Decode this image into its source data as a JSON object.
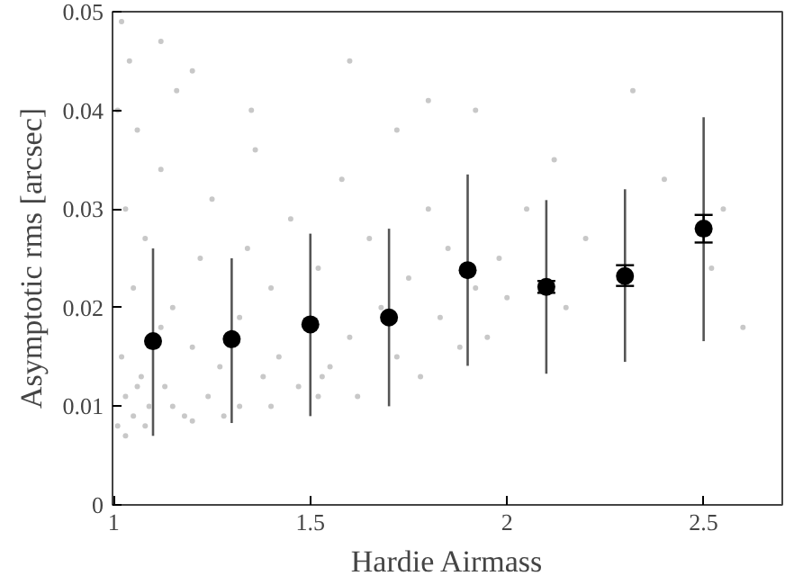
{
  "chart_data": {
    "type": "scatter",
    "xlabel": "Hardie Airmass",
    "ylabel": "Asymptotic rms [arcsec]",
    "xlim": [
      0.997,
      2.7
    ],
    "ylim": [
      0,
      0.05
    ],
    "xticks": [
      1,
      1.5,
      2,
      2.5
    ],
    "yticks": [
      0,
      0.01,
      0.02,
      0.03,
      0.04,
      0.05
    ],
    "grid": false,
    "series": [
      {
        "color": "#c8c8c8",
        "marker": "circle",
        "x": [
          1.01,
          1.02,
          1.02,
          1.03,
          1.03,
          1.04,
          1.05,
          1.05,
          1.06,
          1.07,
          1.08,
          1.09,
          1.12,
          1.12,
          1.13,
          1.15,
          1.16,
          1.18,
          1.2,
          1.22,
          1.24,
          1.25,
          1.27,
          1.32,
          1.32,
          1.34,
          1.36,
          1.38,
          1.4,
          1.42,
          1.45,
          1.47,
          1.53,
          1.52,
          1.55,
          1.58,
          1.6,
          1.62,
          1.65,
          1.68,
          1.72,
          1.72,
          1.75,
          1.78,
          1.8,
          1.83,
          1.85,
          1.88,
          1.92,
          1.92,
          1.95,
          1.98,
          2.0,
          2.05,
          2.12,
          2.15,
          2.2,
          2.32,
          2.4,
          2.52,
          2.55,
          2.6,
          1.01,
          1.03,
          1.06,
          1.08,
          1.15,
          1.2,
          1.28,
          1.4,
          1.52,
          1.12,
          1.2,
          1.35,
          1.6,
          1.8
        ],
        "values": [
          0.008,
          0.015,
          0.049,
          0.011,
          0.03,
          0.045,
          0.009,
          0.022,
          0.038,
          0.013,
          0.027,
          0.01,
          0.018,
          0.034,
          0.012,
          0.02,
          0.042,
          0.009,
          0.016,
          0.025,
          0.011,
          0.031,
          0.014,
          0.019,
          0.01,
          0.026,
          0.036,
          0.013,
          0.022,
          0.015,
          0.029,
          0.012,
          0.013,
          0.024,
          0.014,
          0.033,
          0.017,
          0.011,
          0.027,
          0.02,
          0.015,
          0.038,
          0.023,
          0.013,
          0.03,
          0.019,
          0.026,
          0.016,
          0.022,
          0.04,
          0.017,
          0.025,
          0.021,
          0.03,
          0.035,
          0.02,
          0.027,
          0.042,
          0.033,
          0.024,
          0.03,
          0.018,
          0.04,
          0.007,
          0.012,
          0.008,
          0.01,
          0.0085,
          0.009,
          0.01,
          0.011,
          0.047,
          0.044,
          0.04,
          0.045,
          0.041
        ]
      },
      {
        "color": "#000000",
        "marker": "circle",
        "x": [
          1.1,
          1.3,
          1.5,
          1.7,
          1.9,
          2.1,
          2.3,
          2.5
        ],
        "values": [
          0.0166,
          0.0168,
          0.0183,
          0.019,
          0.0238,
          0.0221,
          0.0232,
          0.028
        ],
        "errors": [
          null,
          null,
          null,
          null,
          null,
          [
            0.0215,
            0.0227
          ],
          [
            0.0222,
            0.0243
          ],
          [
            0.0266,
            0.0294
          ]
        ]
      },
      {
        "type": "line",
        "color": "#555555",
        "marker": "none",
        "x": [
          1.1,
          1.1,
          null,
          1.3,
          1.3,
          null,
          1.5,
          1.5,
          null,
          1.7,
          1.7,
          null,
          1.9,
          1.9,
          null,
          2.1,
          2.1,
          null,
          2.3,
          2.3,
          null,
          2.5,
          2.5
        ],
        "values": [
          0.007,
          0.026,
          null,
          0.0083,
          0.025,
          null,
          0.009,
          0.0275,
          null,
          0.01,
          0.028,
          null,
          0.0141,
          0.0335,
          null,
          0.0133,
          0.0309,
          null,
          0.0145,
          0.032,
          null,
          0.0166,
          0.0393
        ]
      }
    ]
  }
}
